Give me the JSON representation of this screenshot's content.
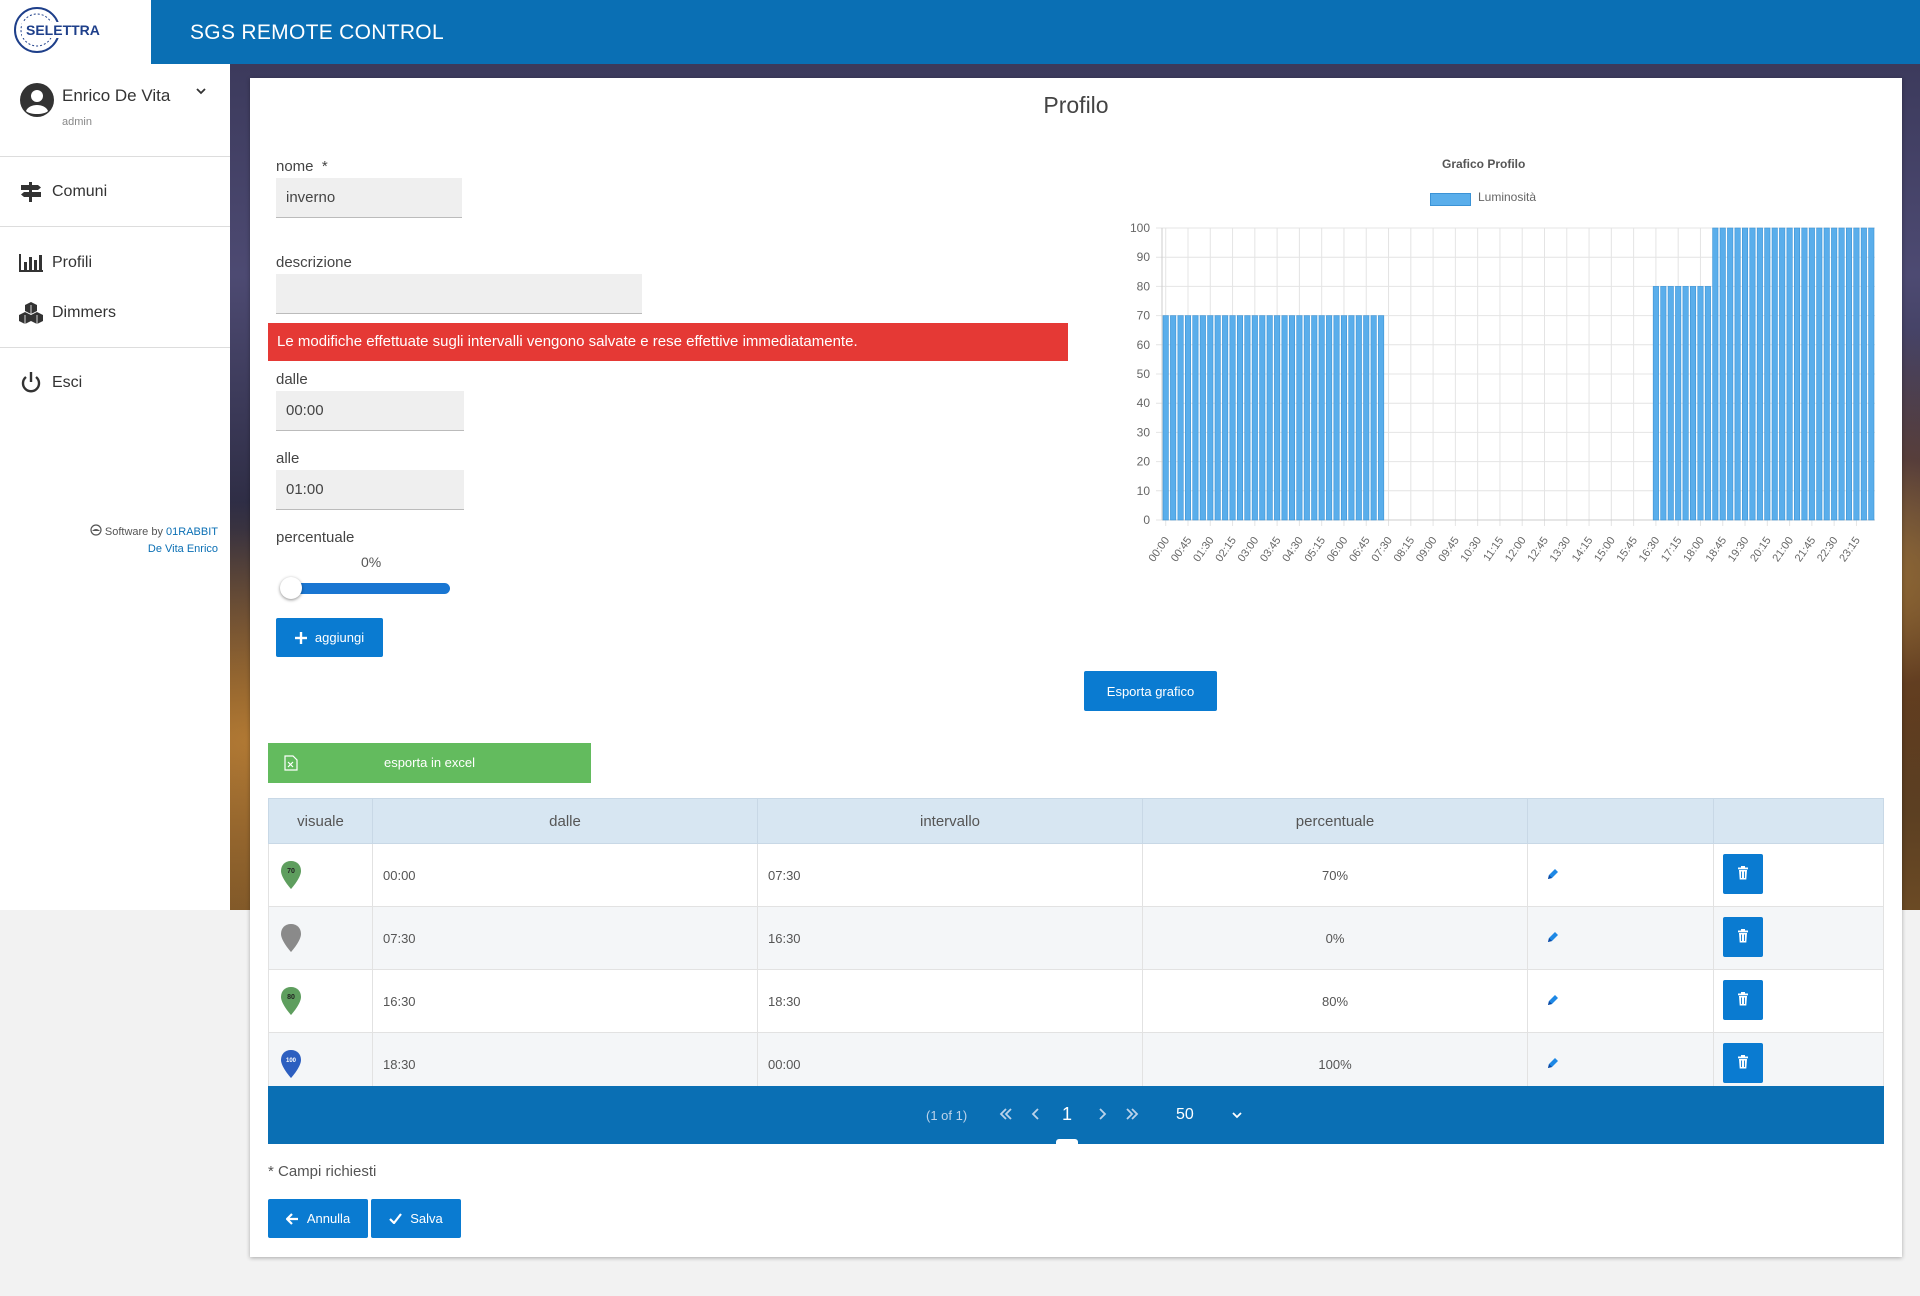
{
  "app": {
    "logo_text": "SELETTRA",
    "title": "SGS REMOTE CONTROL"
  },
  "sidebar": {
    "user_name": "Enrico De Vita",
    "user_role": "admin",
    "items": [
      {
        "label": "Comuni",
        "icon": "signpost-icon"
      },
      {
        "label": "Profili",
        "icon": "bar-chart-icon"
      },
      {
        "label": "Dimmers",
        "icon": "cubes-icon"
      },
      {
        "label": "Esci",
        "icon": "power-icon"
      }
    ],
    "credit_prefix": "Software by",
    "credit_company": "01RABBIT",
    "credit_author": "De Vita Enrico"
  },
  "page": {
    "title": "Profilo",
    "nome_label": "nome",
    "required_mark": "*",
    "nome_value": "inverno",
    "descrizione_label": "descrizione",
    "descrizione_value": "",
    "alert": "Le modifiche effettuate sugli intervalli vengono salvate e rese effettive immediatamente.",
    "dalle_label": "dalle",
    "dalle_value": "00:00",
    "alle_label": "alle",
    "alle_value": "01:00",
    "percentuale_label": "percentuale",
    "percentuale_value": "0%",
    "slider_value": 0,
    "add_button": "aggiungi",
    "export_chart_button": "Esporta grafico",
    "export_excel_button": "esporta in excel",
    "required_note": "* Campi richiesti",
    "cancel_button": "Annulla",
    "save_button": "Salva"
  },
  "table": {
    "headers": [
      "visuale",
      "dalle",
      "intervallo",
      "percentuale",
      "",
      ""
    ],
    "rows": [
      {
        "marker": "70",
        "marker_color": "#5e9e5e",
        "from": "00:00",
        "to": "07:30",
        "percent": "70%"
      },
      {
        "marker": "",
        "marker_color": "#8a8a8a",
        "from": "07:30",
        "to": "16:30",
        "percent": "0%"
      },
      {
        "marker": "80",
        "marker_color": "#5e9e5e",
        "from": "16:30",
        "to": "18:30",
        "percent": "80%"
      },
      {
        "marker": "100",
        "marker_color": "#2d5fc0",
        "from": "18:30",
        "to": "00:00",
        "percent": "100%"
      }
    ]
  },
  "pager": {
    "count": "(1 of 1)",
    "current_page": "1",
    "rows_per_page": "50"
  },
  "colors": {
    "primary": "#0a6fb4",
    "button": "#0a7bd1",
    "alert": "#e53935",
    "excel": "#63bb5e",
    "bar": "#5aaeeb"
  },
  "chart_data": {
    "type": "bar",
    "title": "Grafico Profilo",
    "legend": [
      "Luminosità"
    ],
    "legend_position": "top",
    "ylim": [
      0,
      100
    ],
    "y_ticks": [
      0,
      10,
      20,
      30,
      40,
      50,
      60,
      70,
      80,
      90,
      100
    ],
    "grid": true,
    "x_start": "00:00",
    "x_step_minutes": 15,
    "x_label_every": 3,
    "series": [
      {
        "name": "Luminosità",
        "segments": [
          {
            "from": "00:00",
            "to": "07:30",
            "value": 70
          },
          {
            "from": "07:30",
            "to": "16:30",
            "value": 0
          },
          {
            "from": "16:30",
            "to": "18:30",
            "value": 80
          },
          {
            "from": "18:30",
            "to": "24:00",
            "value": 100
          }
        ]
      }
    ]
  }
}
